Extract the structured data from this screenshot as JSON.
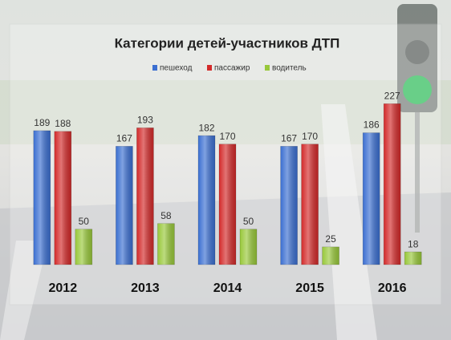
{
  "chart_data": {
    "type": "bar",
    "title": "Категории детей-участников ДТП",
    "categories": [
      "2012",
      "2013",
      "2014",
      "2015",
      "2016"
    ],
    "series": [
      {
        "name": "пешеход",
        "color": "#3b6fd1",
        "values": [
          189,
          167,
          182,
          167,
          186
        ]
      },
      {
        "name": "пассажир",
        "color": "#d32a2a",
        "values": [
          188,
          193,
          170,
          170,
          227
        ]
      },
      {
        "name": "водитель",
        "color": "#98c83a",
        "values": [
          50,
          58,
          50,
          25,
          18
        ]
      }
    ],
    "ylim": [
      0,
      250
    ]
  }
}
